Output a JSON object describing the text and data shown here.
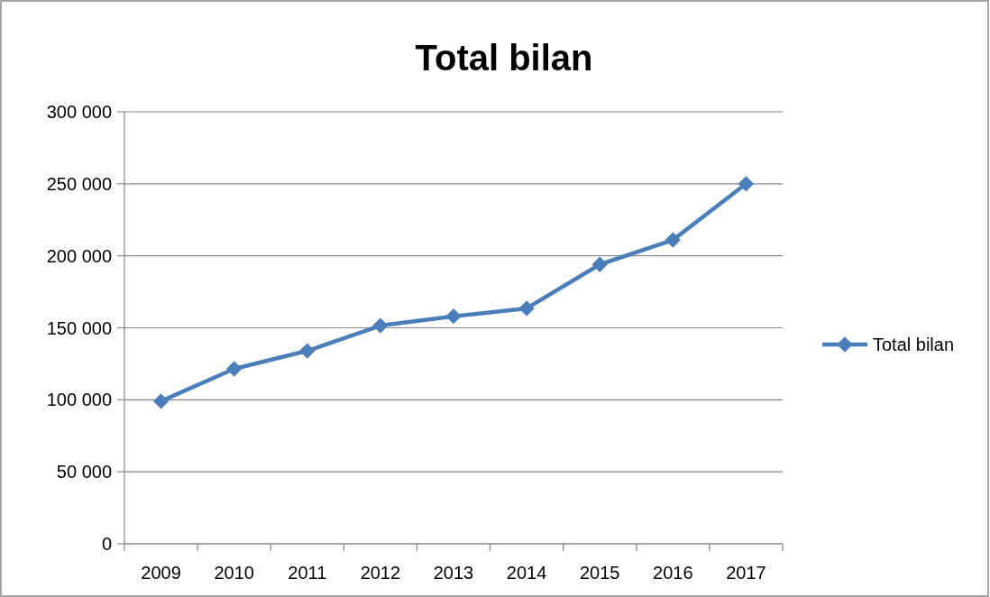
{
  "chart_data": {
    "type": "line",
    "title": "Total bilan",
    "categories": [
      "2009",
      "2010",
      "2011",
      "2012",
      "2013",
      "2014",
      "2015",
      "2016",
      "2017"
    ],
    "series": [
      {
        "name": "Total bilan",
        "color": "#4a7ebb",
        "values": [
          99000,
          121500,
          134000,
          151500,
          158000,
          163500,
          194000,
          211000,
          250000
        ]
      }
    ],
    "ylim": [
      0,
      300000
    ],
    "yticks": [
      {
        "value": 0,
        "label": "0"
      },
      {
        "value": 50000,
        "label": "50 000"
      },
      {
        "value": 100000,
        "label": "100 000"
      },
      {
        "value": 150000,
        "label": "150 000"
      },
      {
        "value": 200000,
        "label": "200 000"
      },
      {
        "value": 250000,
        "label": "250 000"
      },
      {
        "value": 300000,
        "label": "300 000"
      }
    ],
    "grid": "y",
    "legend": "right",
    "marker": "diamond",
    "line_style": "solid"
  }
}
